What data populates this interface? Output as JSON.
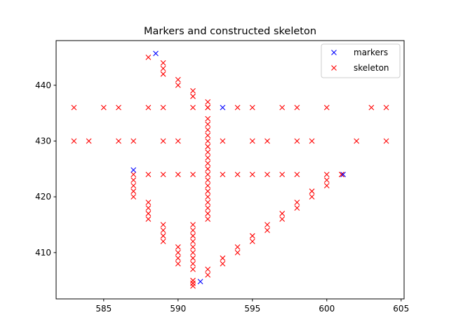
{
  "chart_data": {
    "type": "scatter",
    "title": "Markers and constructed skeleton",
    "xlabel": "",
    "ylabel": "",
    "xlim": [
      581.8,
      605.2
    ],
    "ylim": [
      401.7,
      448.0
    ],
    "xticks": [
      585,
      590,
      595,
      600,
      605
    ],
    "yticks": [
      410,
      420,
      430,
      440
    ],
    "grid": false,
    "legend_position": "top-right",
    "marker": "x",
    "series": [
      {
        "name": "markers",
        "color": "#0000ff",
        "points": [
          [
            588.5,
            445.7
          ],
          [
            593,
            436
          ],
          [
            587,
            424.8
          ],
          [
            601.1,
            424
          ],
          [
            591.5,
            404.8
          ]
        ]
      },
      {
        "name": "skeleton",
        "color": "#ff0000",
        "points": [
          [
            583,
            436
          ],
          [
            585,
            436
          ],
          [
            586,
            436
          ],
          [
            588,
            436
          ],
          [
            589,
            436
          ],
          [
            591,
            436
          ],
          [
            592,
            436
          ],
          [
            594,
            436
          ],
          [
            595,
            436
          ],
          [
            597,
            436
          ],
          [
            598,
            436
          ],
          [
            600,
            436
          ],
          [
            603,
            436
          ],
          [
            604,
            436
          ],
          [
            583,
            430
          ],
          [
            584,
            430
          ],
          [
            586,
            430
          ],
          [
            587,
            430
          ],
          [
            589,
            430
          ],
          [
            590,
            430
          ],
          [
            593,
            430
          ],
          [
            595,
            430
          ],
          [
            596,
            430
          ],
          [
            598,
            430
          ],
          [
            599,
            430
          ],
          [
            602,
            430
          ],
          [
            604,
            430
          ],
          [
            588,
            424
          ],
          [
            589,
            424
          ],
          [
            590,
            424
          ],
          [
            591,
            424
          ],
          [
            593,
            424
          ],
          [
            594,
            424
          ],
          [
            595,
            424
          ],
          [
            596,
            424
          ],
          [
            597,
            424
          ],
          [
            598,
            424
          ],
          [
            600,
            424
          ],
          [
            601,
            424
          ],
          [
            588,
            445
          ],
          [
            589,
            444
          ],
          [
            589,
            443
          ],
          [
            589,
            442
          ],
          [
            590,
            441
          ],
          [
            590,
            440
          ],
          [
            591,
            439
          ],
          [
            591,
            438
          ],
          [
            592,
            437
          ],
          [
            592,
            436
          ],
          [
            592,
            434
          ],
          [
            592,
            433
          ],
          [
            592,
            432
          ],
          [
            592,
            431
          ],
          [
            592,
            430
          ],
          [
            592,
            429
          ],
          [
            592,
            428
          ],
          [
            592,
            427
          ],
          [
            592,
            426
          ],
          [
            592,
            425
          ],
          [
            592,
            424
          ],
          [
            592,
            423
          ],
          [
            592,
            422
          ],
          [
            592,
            421
          ],
          [
            592,
            420
          ],
          [
            592,
            419
          ],
          [
            592,
            418
          ],
          [
            592,
            417
          ],
          [
            592,
            416
          ],
          [
            587,
            424
          ],
          [
            587,
            423
          ],
          [
            587,
            422
          ],
          [
            587,
            421
          ],
          [
            587,
            420
          ],
          [
            588,
            419
          ],
          [
            588,
            418
          ],
          [
            588,
            417
          ],
          [
            588,
            416
          ],
          [
            589,
            415
          ],
          [
            589,
            414
          ],
          [
            589,
            413
          ],
          [
            589,
            412
          ],
          [
            590,
            411
          ],
          [
            590,
            410
          ],
          [
            590,
            409
          ],
          [
            590,
            408
          ],
          [
            591,
            415
          ],
          [
            591,
            414
          ],
          [
            591,
            413
          ],
          [
            591,
            412
          ],
          [
            591,
            411
          ],
          [
            591,
            410
          ],
          [
            591,
            409
          ],
          [
            591,
            408
          ],
          [
            591,
            407
          ],
          [
            591,
            405
          ],
          [
            591,
            404.5
          ],
          [
            591,
            404
          ],
          [
            592,
            407
          ],
          [
            592,
            406
          ],
          [
            593,
            409
          ],
          [
            593,
            408
          ],
          [
            594,
            411
          ],
          [
            594,
            410
          ],
          [
            595,
            413
          ],
          [
            595,
            412
          ],
          [
            596,
            415
          ],
          [
            596,
            414
          ],
          [
            597,
            417
          ],
          [
            597,
            416
          ],
          [
            598,
            419
          ],
          [
            598,
            418
          ],
          [
            599,
            421
          ],
          [
            599,
            420
          ],
          [
            600,
            423
          ],
          [
            600,
            422
          ],
          [
            601,
            424
          ]
        ]
      }
    ]
  }
}
